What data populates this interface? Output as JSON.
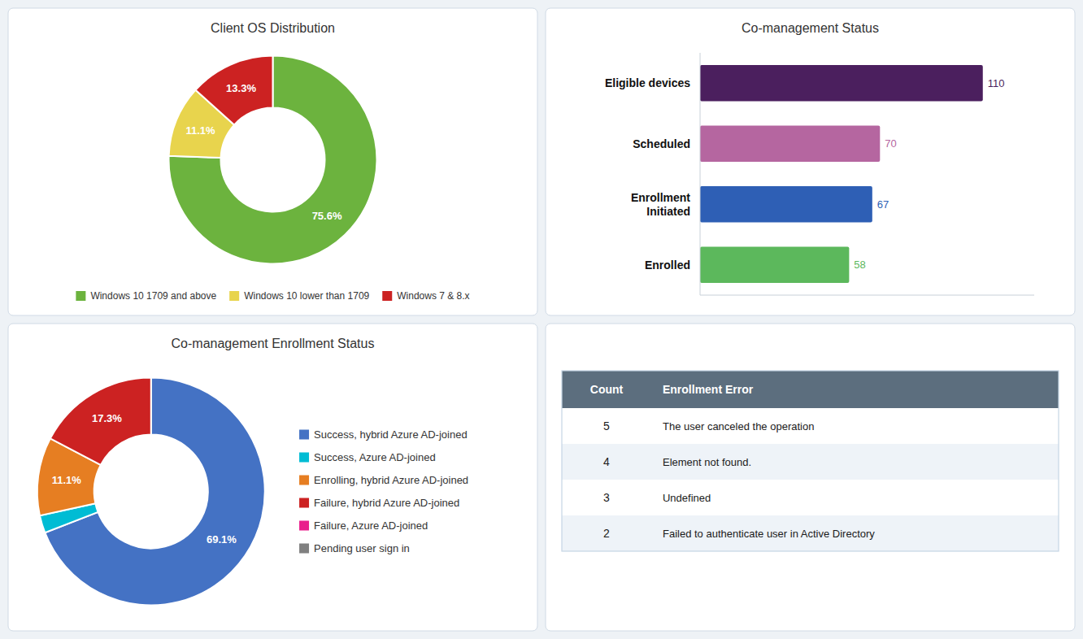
{
  "chart_data": [
    {
      "type": "pie",
      "title": "Client OS Distribution",
      "categories": [
        "Windows 10 1709 and above",
        "Windows 10 lower than 1709",
        "Windows 7 & 8.x"
      ],
      "values": [
        75.6,
        11.1,
        13.3
      ],
      "value_labels": [
        "75.6%",
        "11.1%",
        "13.3%"
      ],
      "colors": [
        "#6cb33e",
        "#e8d44d",
        "#cc2222"
      ],
      "data_labels": true,
      "legend": "bottom"
    },
    {
      "type": "bar",
      "title": "Co-management Status",
      "orientation": "horizontal",
      "categories": [
        "Eligible devices",
        "Scheduled",
        "Enrollment\nInitiated",
        "Enrolled"
      ],
      "values": [
        110,
        70,
        67,
        58
      ],
      "colors": [
        "#4b1f5e",
        "#b566a0",
        "#2e5fb5",
        "#5cb85c"
      ],
      "xlim": [
        0,
        130
      ],
      "data_labels": true,
      "tick_labels": "y"
    },
    {
      "type": "pie",
      "title": "Co-management Enrollment Status",
      "categories": [
        "Success, hybrid Azure AD-joined",
        "Success, Azure AD-joined",
        "Enrolling, hybrid Azure AD-joined",
        "Failure, hybrid Azure AD-joined",
        "Failure, Azure AD-joined",
        "Pending user sign in"
      ],
      "values": [
        69.1,
        2.5,
        11.1,
        17.3,
        0.0,
        0.0
      ],
      "value_labels": [
        "69.1%",
        null,
        "11.1%",
        "17.3%",
        null,
        null
      ],
      "colors": [
        "#4472c4",
        "#00bcd4",
        "#e67e22",
        "#cc2222",
        "#e91e8c",
        "#808080"
      ],
      "data_labels": true,
      "legend": "right"
    },
    {
      "type": "table",
      "columns": [
        "Count",
        "Enrollment Error"
      ],
      "rows": [
        [
          5,
          "The user canceled the operation"
        ],
        [
          4,
          "Element not found."
        ],
        [
          3,
          "Undefined"
        ],
        [
          2,
          "Failed to authenticate user in Active Directory"
        ]
      ]
    }
  ]
}
